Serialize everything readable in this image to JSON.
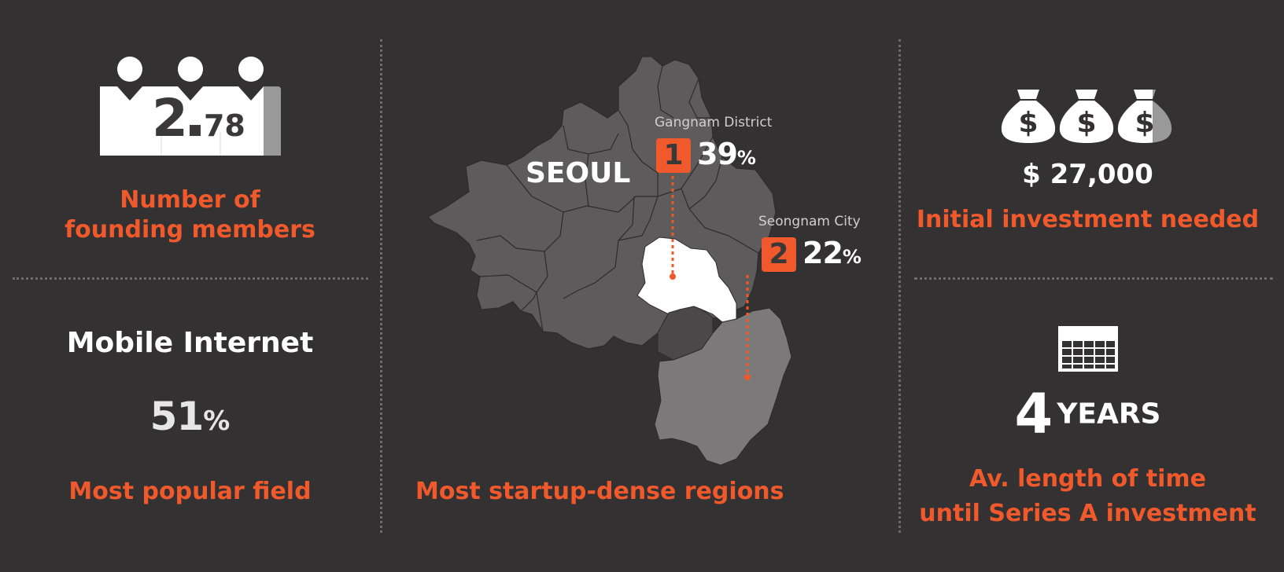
{
  "colors": {
    "background": "#333132",
    "accent": "#f0592b",
    "text": "#ffffff",
    "divider": "#6d6b6c"
  },
  "founders": {
    "icon": "people-group-icon",
    "value_whole": "2",
    "value_decimal": "78",
    "label_line1": "Number of",
    "label_line2": "founding members"
  },
  "field": {
    "name": "Mobile Internet",
    "percent": "51",
    "percent_sign": "%",
    "label": "Most popular field"
  },
  "regions": {
    "map_label": "SEOUL",
    "label": "Most startup-dense regions",
    "items": [
      {
        "rank": "1",
        "name": "Gangnam District",
        "percent": "39",
        "sign": "%"
      },
      {
        "rank": "2",
        "name": "Seongnam City",
        "percent": "22",
        "sign": "%"
      }
    ]
  },
  "investment": {
    "icon": "money-bag-icon",
    "amount": "$ 27,000",
    "label": "Initial investment needed"
  },
  "series_a": {
    "icon": "calendar-icon",
    "number": "4",
    "unit": "YEARS",
    "label_line1": "Av. length of time",
    "label_line2": "until Series A investment"
  }
}
